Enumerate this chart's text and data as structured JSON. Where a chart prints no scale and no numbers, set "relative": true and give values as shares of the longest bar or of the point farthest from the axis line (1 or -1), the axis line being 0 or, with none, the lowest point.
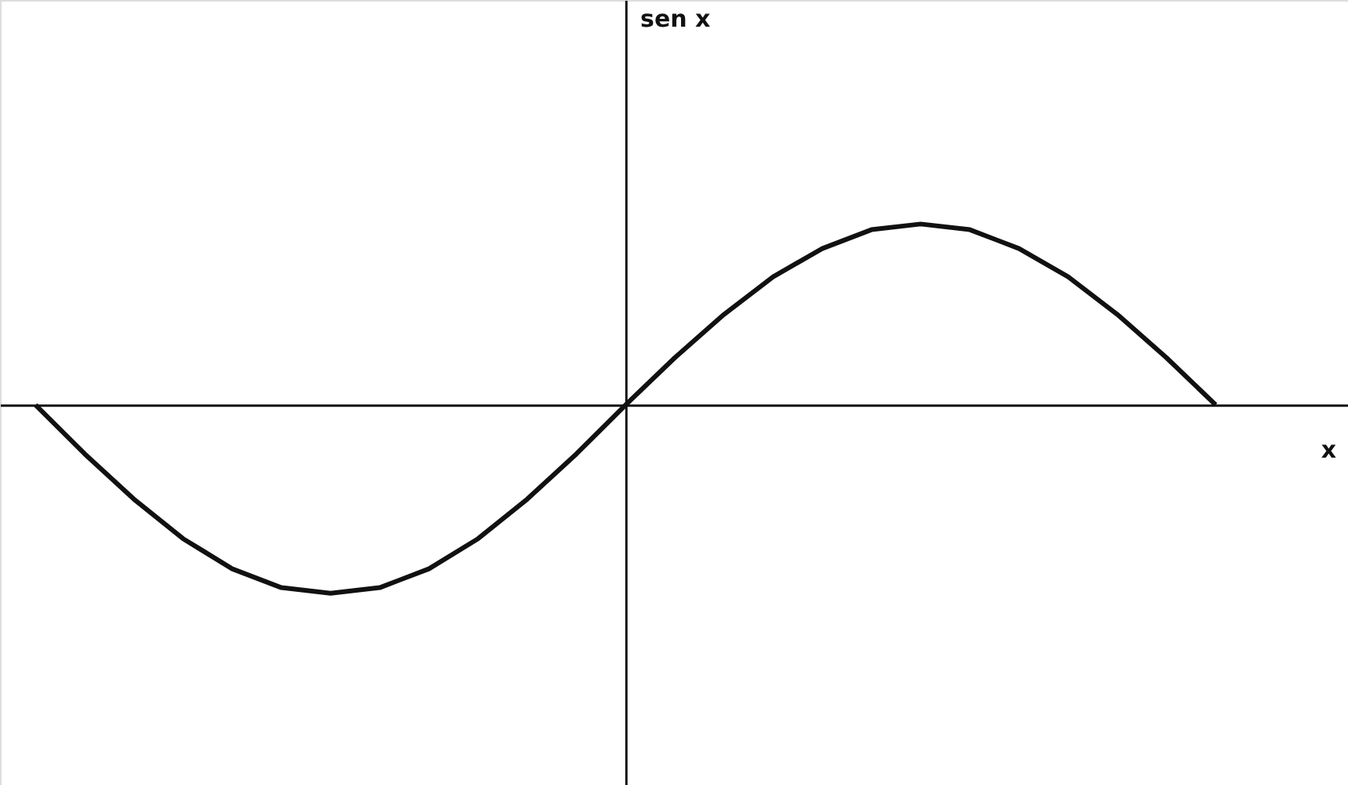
{
  "chart_data": {
    "type": "line",
    "relative": true,
    "xlabel": "x",
    "annotations": [
      "sen x"
    ],
    "color": "#111111",
    "grid": false,
    "marker": "none",
    "line_style": "solid",
    "categories": [
      null,
      null,
      null,
      null,
      null,
      null,
      null,
      null,
      null,
      null,
      null,
      null,
      null,
      null,
      null,
      null,
      null,
      null,
      null,
      null,
      null,
      null,
      null,
      null,
      null
    ],
    "values": [
      0,
      -0.26,
      -0.5,
      -0.71,
      -0.87,
      -0.97,
      -1,
      -0.97,
      -0.87,
      -0.71,
      -0.5,
      -0.26,
      0,
      0.25,
      0.48,
      0.68,
      0.83,
      0.93,
      0.96,
      0.93,
      0.83,
      0.68,
      0.48,
      0.25,
      0
    ]
  }
}
